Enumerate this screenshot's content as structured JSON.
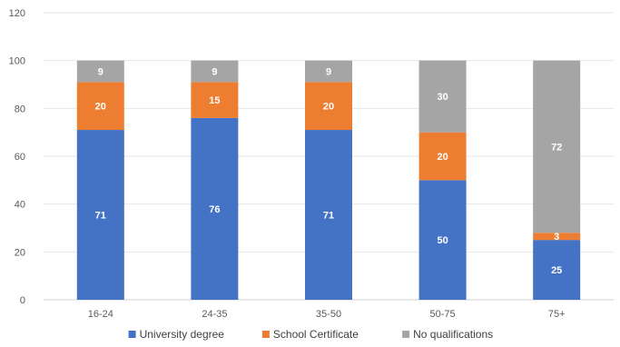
{
  "chart_data": {
    "type": "bar",
    "stacked": true,
    "categories": [
      "16-24",
      "24-35",
      "35-50",
      "50-75",
      "75+"
    ],
    "series": [
      {
        "name": "University degree",
        "color": "#4472c4",
        "values": [
          71,
          76,
          71,
          50,
          25
        ]
      },
      {
        "name": "School Certificate",
        "color": "#ed7d31",
        "values": [
          20,
          15,
          20,
          20,
          3
        ]
      },
      {
        "name": "No qualifications",
        "color": "#a5a5a5",
        "values": [
          9,
          9,
          9,
          30,
          72
        ]
      }
    ],
    "ylim": [
      0,
      120
    ],
    "yticks": [
      0,
      20,
      40,
      60,
      80,
      100,
      120
    ],
    "grid": true,
    "legend": "bottom",
    "title": "",
    "xlabel": "",
    "ylabel": ""
  }
}
